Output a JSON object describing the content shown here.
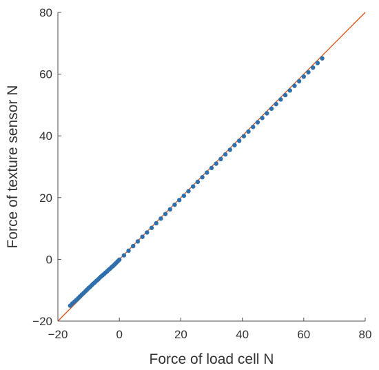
{
  "chart_data": {
    "type": "scatter",
    "title": "",
    "xlabel": "Force of load cell N",
    "ylabel": "Force of texture sensor N",
    "xlim": [
      -20,
      80
    ],
    "ylim": [
      -20,
      80
    ],
    "xticks": [
      -20,
      0,
      20,
      40,
      60,
      80
    ],
    "yticks": [
      -20,
      0,
      20,
      40,
      60,
      80
    ],
    "xtick_labels": [
      "−20",
      "0",
      "20",
      "40",
      "60",
      "80"
    ],
    "ytick_labels": [
      "−20",
      "0",
      "20",
      "40",
      "60",
      "80"
    ],
    "grid": false,
    "colors": {
      "points": "#2e6fac",
      "reference_line": "#d95319",
      "axes": "#4d4d4d"
    },
    "reference_line": {
      "x": [
        -20,
        80
      ],
      "y": [
        -20,
        80
      ]
    },
    "series": [
      {
        "x": [
          -16,
          -15.3,
          -14.6,
          -14,
          -13.4,
          -12.8,
          -12.2,
          -11.6,
          -11,
          -10.5,
          -10,
          -9.5,
          -9,
          -8.5,
          -8,
          -7.5,
          -7,
          -6.5,
          -6,
          -5.5,
          -5,
          -4.5,
          -4,
          -3.5,
          -3,
          -2.5,
          -2,
          -1.5,
          -1,
          -0.5,
          0,
          1.5,
          3,
          4.5,
          6,
          7.5,
          9,
          10.5,
          12,
          13.5,
          15,
          16.5,
          18,
          19.5,
          21,
          22.5,
          24,
          25.5,
          27,
          28.5,
          30,
          31.5,
          33,
          34.5,
          36,
          37.5,
          39,
          40.5,
          42,
          43.5,
          45,
          46.5,
          48,
          49.5,
          51,
          52.5,
          54,
          55.5,
          57,
          58.5,
          60,
          61.5,
          63,
          64.5,
          66
        ],
        "y": [
          -15,
          -14.3,
          -13.7,
          -13.2,
          -12.6,
          -12,
          -11.4,
          -10.9,
          -10.3,
          -9.8,
          -9.3,
          -8.9,
          -8.4,
          -7.9,
          -7.5,
          -7,
          -6.6,
          -6.1,
          -5.6,
          -5.2,
          -4.8,
          -4.3,
          -3.9,
          -3.4,
          -3,
          -2.5,
          -2.1,
          -1.6,
          -1.1,
          -0.6,
          -0.1,
          1.3,
          2.8,
          4.3,
          5.8,
          7.3,
          8.7,
          10.2,
          11.7,
          13.2,
          14.7,
          16.2,
          17.7,
          19.2,
          20.6,
          22.1,
          23.6,
          25.1,
          26.6,
          28.1,
          29.6,
          31,
          32.5,
          34,
          35.5,
          37,
          38.4,
          39.9,
          41.4,
          42.9,
          44.4,
          45.8,
          47.3,
          48.8,
          50.3,
          51.8,
          53.2,
          54.7,
          56.2,
          57.7,
          59.2,
          60.6,
          62.1,
          63.6,
          65.1
        ]
      }
    ]
  }
}
